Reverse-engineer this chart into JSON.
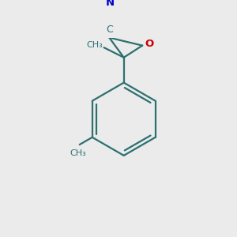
{
  "background_color": "#ebebeb",
  "bond_color": "#2d7070",
  "nitrogen_color": "#0000cc",
  "oxygen_color": "#cc0000",
  "line_width": 1.6,
  "fig_size": [
    3.0,
    3.0
  ],
  "dpi": 100,
  "label_N": "N",
  "label_C": "C",
  "label_O": "O",
  "label_CH3": "CH₃"
}
